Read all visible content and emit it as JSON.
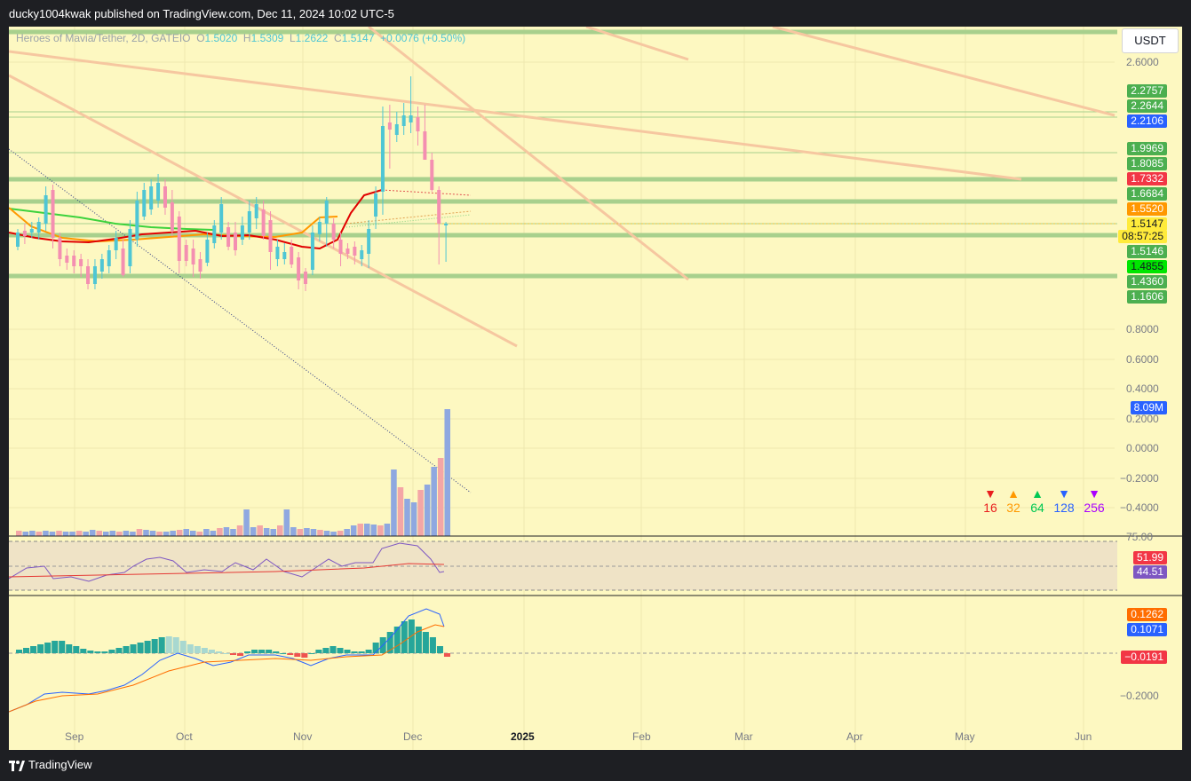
{
  "header": {
    "published_text": "ducky1004kwak published on TradingView.com, Dec 11, 2024 10:02 UTC-5"
  },
  "footer": {
    "brand": "TradingView"
  },
  "chart": {
    "legend": {
      "symbol": "Heroes of Mavia/Tether, 2D, GATEIO",
      "open_label": "O",
      "open": "1.5020",
      "high_label": "H",
      "high": "1.5309",
      "low_label": "L",
      "low": "1.2622",
      "close_label": "C",
      "close": "1.5147",
      "change": "+0.0076 (+0.50%)"
    },
    "currency_button": "USDT",
    "price_axis_ticks": [
      "2.6000",
      "0.8000",
      "0.6000",
      "0.4000",
      "0.2000",
      "0.0000",
      "−0.2000",
      "−0.4000"
    ],
    "price_tags": [
      {
        "value": "2.2757",
        "color": "#4caf50"
      },
      {
        "value": "2.2644",
        "color": "#4caf50"
      },
      {
        "value": "2.2106",
        "color": "#2962ff"
      },
      {
        "value": "1.9969",
        "color": "#4caf50"
      },
      {
        "value": "1.8085",
        "color": "#4caf50"
      },
      {
        "value": "1.7332",
        "color": "#f23645"
      },
      {
        "value": "1.6684",
        "color": "#4caf50"
      },
      {
        "value": "1.5520",
        "color": "#ff9800"
      },
      {
        "value": "1.5147",
        "color": "#ffeb3b"
      },
      {
        "value": "08:57:25",
        "color": "#ffeb3b"
      },
      {
        "value": "1.5146",
        "color": "#4caf50"
      },
      {
        "value": "1.4855",
        "color": "#00e600"
      },
      {
        "value": "1.4360",
        "color": "#4caf50"
      },
      {
        "value": "1.1606",
        "color": "#4caf50"
      }
    ],
    "volume_tag": {
      "value": "8.09M",
      "color": "#2962ff"
    },
    "rsi": {
      "axis_partial": "75.00",
      "tags": [
        {
          "value": "51.99",
          "color": "#f23645"
        },
        {
          "value": "44.51",
          "color": "#7e57c2"
        }
      ]
    },
    "macd": {
      "tags": [
        {
          "value": "0.1262",
          "color": "#ff6d00"
        },
        {
          "value": "0.1071",
          "color": "#2962ff"
        },
        {
          "value": "−0.0191",
          "color": "#f23645"
        }
      ],
      "axis_ticks": [
        "−0.2000"
      ]
    },
    "time_axis": [
      {
        "label": "Sep",
        "bold": false
      },
      {
        "label": "Oct",
        "bold": false
      },
      {
        "label": "Nov",
        "bold": false
      },
      {
        "label": "Dec",
        "bold": false
      },
      {
        "label": "2025",
        "bold": true
      },
      {
        "label": "Feb",
        "bold": false
      },
      {
        "label": "Mar",
        "bold": false
      },
      {
        "label": "Apr",
        "bold": false
      },
      {
        "label": "May",
        "bold": false
      },
      {
        "label": "Jun",
        "bold": false
      }
    ],
    "fib_legend": [
      {
        "arrow": "▼",
        "value": "16",
        "color": "#e91e1e"
      },
      {
        "arrow": "▲",
        "value": "32",
        "color": "#ff9800"
      },
      {
        "arrow": "▲",
        "value": "64",
        "color": "#00c853"
      },
      {
        "arrow": "▼",
        "value": "128",
        "color": "#2962ff"
      },
      {
        "arrow": "▼",
        "value": "256",
        "color": "#aa00ff"
      }
    ],
    "colors": {
      "background": "#fdf8c1",
      "up": "#4fc6d4",
      "down": "#f48fb1",
      "level": "#a8d08d"
    }
  }
}
